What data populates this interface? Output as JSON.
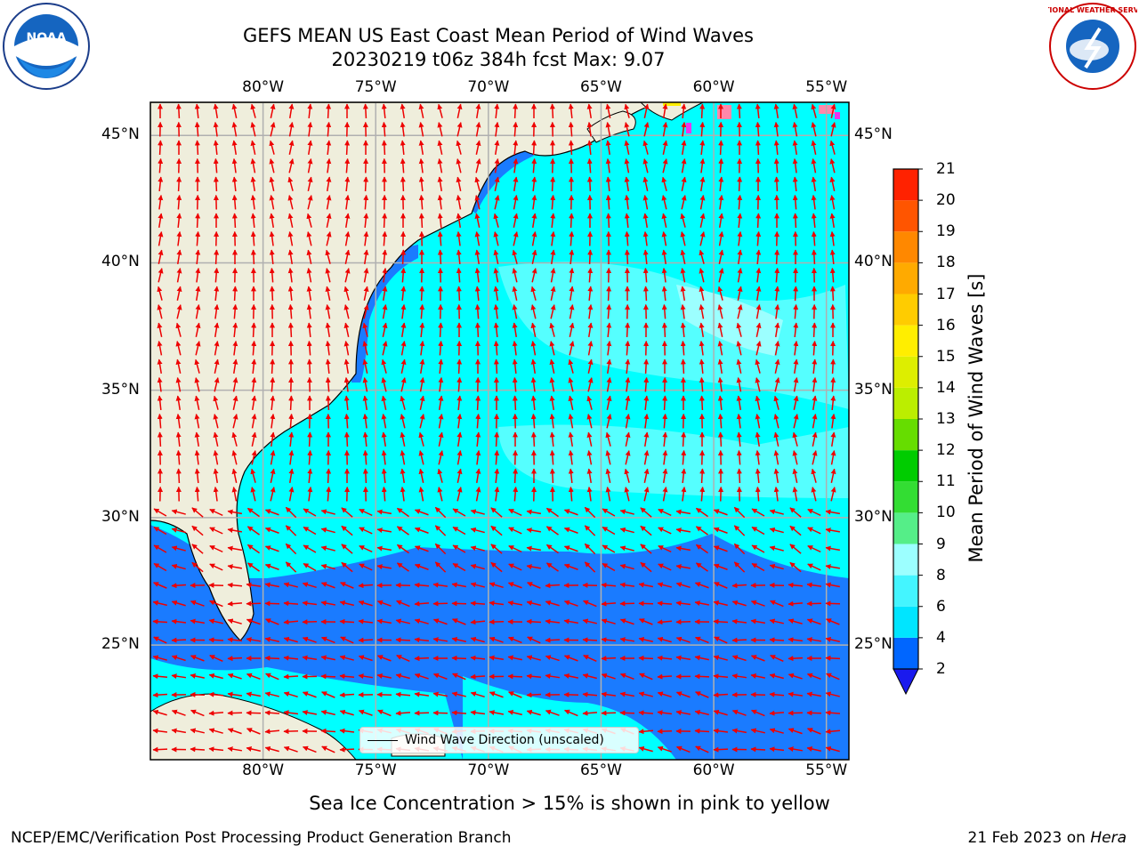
{
  "title": {
    "line1": "GEFS MEAN US East Coast Mean Period of Wind Waves",
    "line2": "20230219 t06z 384h fcst   Max: 9.07"
  },
  "logos": {
    "left": "NOAA",
    "right": "NATIONAL WEATHER SERVICE"
  },
  "map": {
    "lon_labels": [
      "80°W",
      "75°W",
      "70°W",
      "65°W",
      "60°W",
      "55°W"
    ],
    "lat_labels": [
      "45°N",
      "40°N",
      "35°N",
      "30°N",
      "25°N"
    ],
    "extent": {
      "lon": [
        -85,
        -54
      ],
      "lat": [
        20.5,
        46.3
      ]
    },
    "grid": true,
    "legend_label": "Wind Wave Direction (unscaled)"
  },
  "colorbar": {
    "title": "Mean Period of Wind Waves [s]",
    "ticks": [
      "2",
      "4",
      "6",
      "8",
      "9",
      "10",
      "11",
      "12",
      "13",
      "14",
      "15",
      "16",
      "17",
      "18",
      "19",
      "20",
      "21"
    ],
    "colors": [
      "#0066ff",
      "#00e5ff",
      "#44f5ff",
      "#9cffff",
      "#55ee88",
      "#33dd33",
      "#00cc00",
      "#66dd00",
      "#bbee00",
      "#ddee00",
      "#ffee00",
      "#ffcc00",
      "#ffaa00",
      "#ff8800",
      "#ff5500",
      "#ff2200",
      "#ff0000"
    ],
    "under_color": "#1a1aee"
  },
  "colors": {
    "land": "#efeedc",
    "ocean_light": "#00ffff",
    "ocean_mid": "#55ffff",
    "ocean_low": "#1a7bff",
    "arrow": "#ee0000",
    "grid": "#b0b0b0"
  },
  "notes": {
    "sea_ice": "Sea Ice Concentration > 15% is shown in pink to yellow"
  },
  "footer": {
    "left": "NCEP/EMC/Verification Post Processing Product Generation Branch",
    "right_date": "21 Feb 2023 on ",
    "right_machine": "Hera"
  }
}
